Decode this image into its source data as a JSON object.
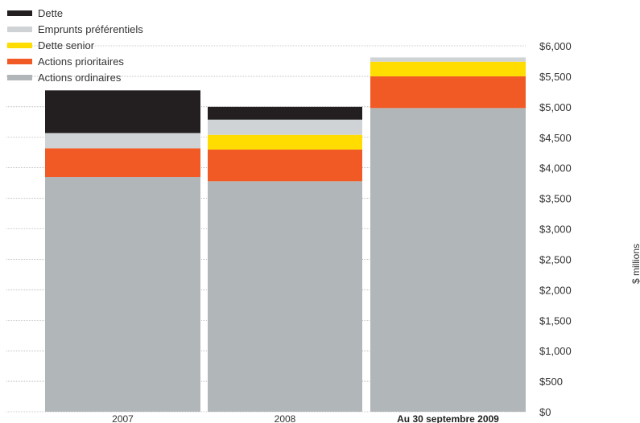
{
  "chart_data": {
    "type": "bar",
    "stacked": true,
    "categories": [
      "2007",
      "2008",
      "Au 30 septembre 2009"
    ],
    "series": [
      {
        "name": "Actions ordinaires",
        "color": "#b1b6b9",
        "values": [
          3850,
          3780,
          4980
        ]
      },
      {
        "name": "Actions prioritaires",
        "color": "#f15a24",
        "values": [
          470,
          520,
          520
        ]
      },
      {
        "name": "Dette senior",
        "color": "#ffdd00",
        "values": [
          0,
          240,
          240
        ]
      },
      {
        "name": "Emprunts préférentiels",
        "color": "#d0d3d6",
        "values": [
          250,
          250,
          70
        ]
      },
      {
        "name": "Dette",
        "color": "#231f20",
        "values": [
          700,
          210,
          0
        ]
      }
    ],
    "legend": {
      "position": "top-left",
      "order": [
        "Dette",
        "Emprunts préférentiels",
        "Dette senior",
        "Actions prioritaires",
        "Actions ordinaires"
      ]
    },
    "yaxis": {
      "label": "$ millions",
      "ticks": [
        "$0",
        "$500",
        "$1,000",
        "$1,500",
        "$2,000",
        "$2,500",
        "$3,000",
        "$3,500",
        "$4,000",
        "$4,500",
        "$5,000",
        "$5,500",
        "$6,000"
      ],
      "position": "right"
    },
    "ylim": [
      0,
      6000
    ],
    "grid": true,
    "bold_categories": [
      "Au 30 septembre 2009"
    ]
  }
}
